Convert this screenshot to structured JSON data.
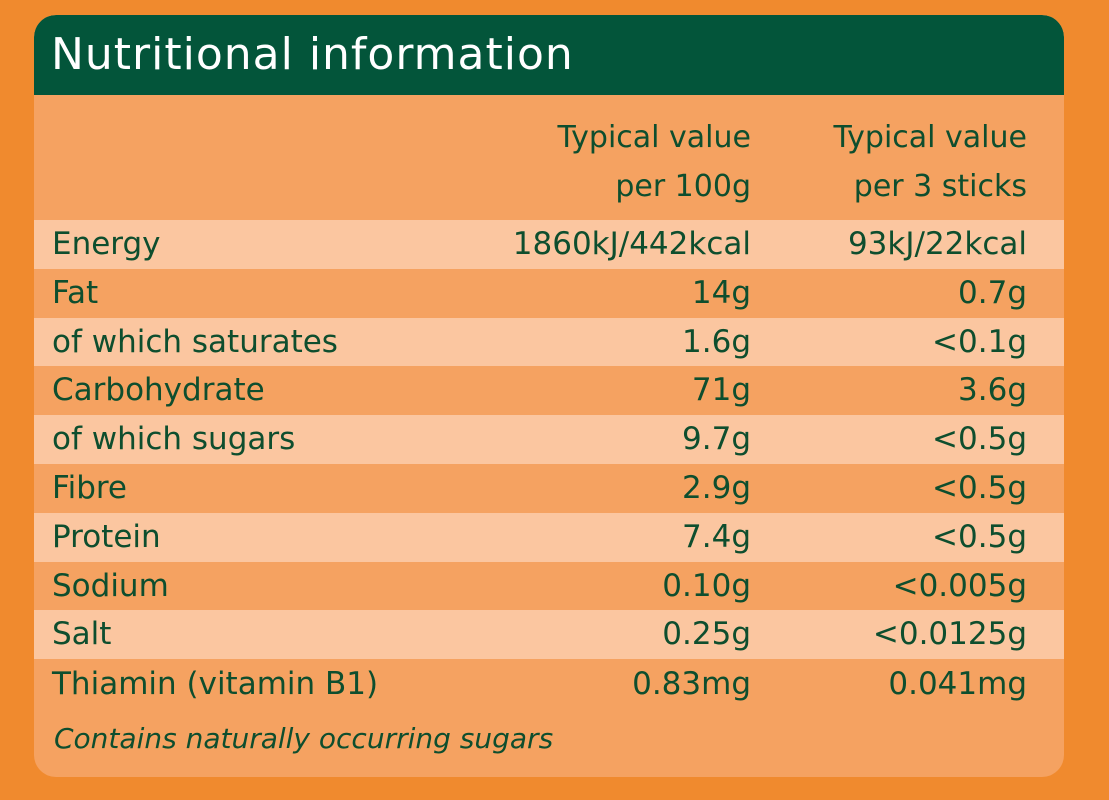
{
  "title": "Nutritional information",
  "columns": {
    "per_100g": {
      "line1": "Typical value",
      "line2": "per 100g"
    },
    "per_serving": {
      "line1": "Typical value",
      "line2": "per 3 sticks"
    }
  },
  "rows": [
    {
      "label": "Energy",
      "per_100g": "1860kJ/442kcal",
      "per_serving": "93kJ/22kcal"
    },
    {
      "label": "Fat",
      "per_100g": "14g",
      "per_serving": "0.7g"
    },
    {
      "label": "of which saturates",
      "per_100g": "1.6g",
      "per_serving": "<0.1g"
    },
    {
      "label": "Carbohydrate",
      "per_100g": "71g",
      "per_serving": "3.6g"
    },
    {
      "label": "of which sugars",
      "per_100g": "9.7g",
      "per_serving": "<0.5g"
    },
    {
      "label": "Fibre",
      "per_100g": "2.9g",
      "per_serving": "<0.5g"
    },
    {
      "label": "Protein",
      "per_100g": "7.4g",
      "per_serving": "<0.5g"
    },
    {
      "label": "Sodium",
      "per_100g": "0.10g",
      "per_serving": "<0.005g"
    },
    {
      "label": "Salt",
      "per_100g": "0.25g",
      "per_serving": "<0.0125g"
    },
    {
      "label": "Thiamin (vitamin B1)",
      "per_100g": "0.83mg",
      "per_serving": "0.041mg"
    }
  ],
  "footnote": "Contains naturally occurring sugars",
  "colors": {
    "page_background": "#F08A2E",
    "card_background": "#F5A261",
    "row_stripe": "#FBC6A0",
    "title_bar": "#03553A",
    "text": "#0E4E2E"
  }
}
